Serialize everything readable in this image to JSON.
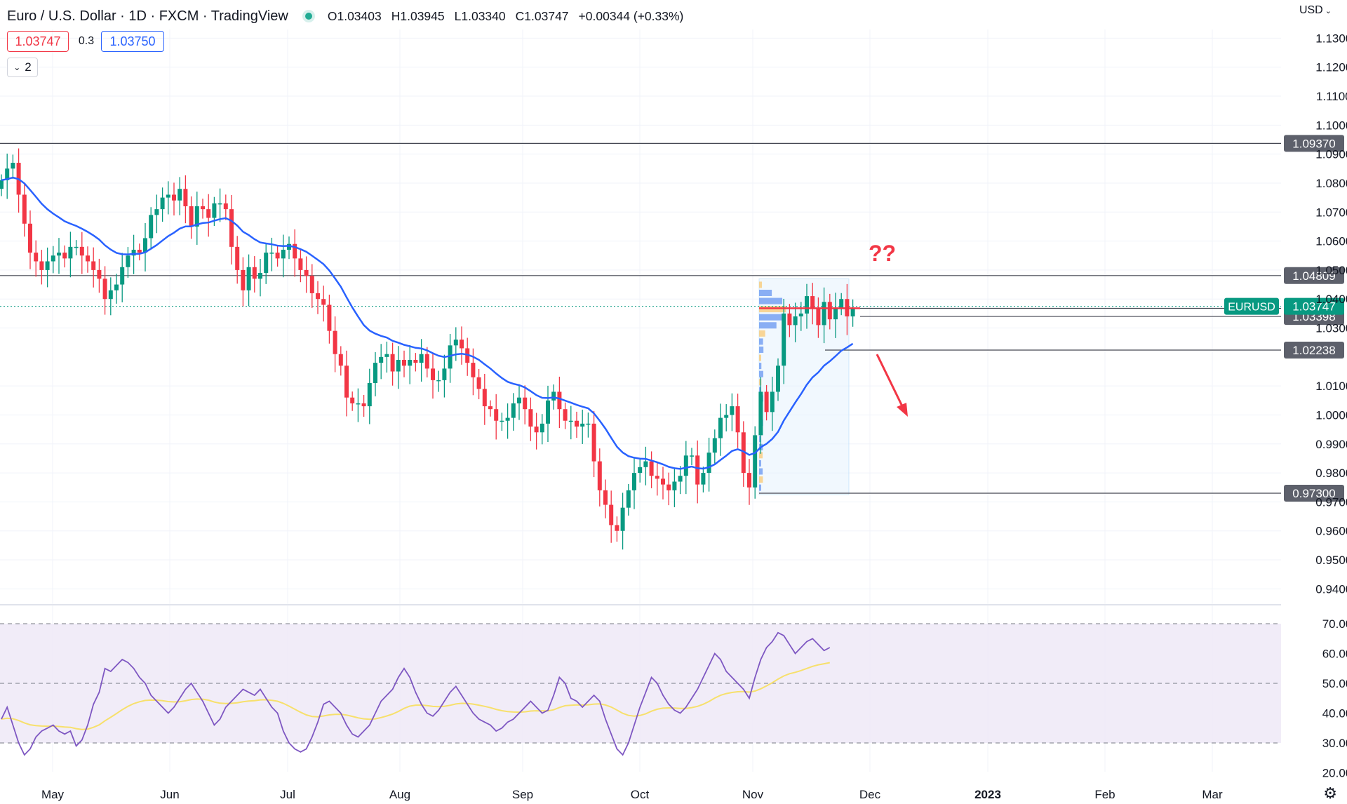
{
  "header": {
    "title": "Euro / U.S. Dollar · 1D · FXCM · TradingView",
    "open": "O1.03403",
    "high": "H1.03945",
    "low": "L1.03340",
    "close": "C1.03747",
    "change": "+0.00344 (+0.33%)"
  },
  "trade": {
    "sell_price": "1.03747",
    "spread": "0.3",
    "buy_price": "1.03750"
  },
  "indicator_toggle": {
    "label": "2"
  },
  "currency": "USD",
  "annotation": "??",
  "colors": {
    "up": "#089981",
    "down": "#f23645",
    "ema": "#2962ff",
    "rsi": "#7e57c2",
    "rsi_ma": "#f7e06c",
    "rsi_band": "#ede7f6",
    "volume_profile": "#e3f2fd"
  },
  "chart_data": [
    {
      "type": "candlestick",
      "symbol": "EURUSD",
      "ylim": [
        0.935,
        1.133
      ],
      "yticks": [
        "1.13000",
        "1.12000",
        "1.11000",
        "1.10000",
        "1.09000",
        "1.08000",
        "1.07000",
        "1.06000",
        "1.05000",
        "1.04000",
        "1.03000",
        "1.01000",
        "1.00000",
        "0.99000",
        "0.98000",
        "0.97000",
        "0.96000",
        "0.95000",
        "0.94000"
      ],
      "ytick_values": [
        1.13,
        1.12,
        1.11,
        1.1,
        1.09,
        1.08,
        1.07,
        1.06,
        1.05,
        1.04,
        1.03,
        1.01,
        1.0,
        0.99,
        0.98,
        0.97,
        0.96,
        0.95,
        0.94
      ],
      "xticks": [
        "May",
        "Jun",
        "Jul",
        "Aug",
        "Sep",
        "Oct",
        "Nov",
        "Dec",
        "2023",
        "Feb",
        "Mar"
      ],
      "levels": [
        {
          "value": 1.0937,
          "label": "1.09370"
        },
        {
          "value": 1.04809,
          "label": "1.04809"
        },
        {
          "value": 1.03678,
          "label": "1.03678"
        },
        {
          "value": 1.03398,
          "label": "1.03398"
        },
        {
          "value": 1.02238,
          "label": "1.02238"
        },
        {
          "value": 0.973,
          "label": "0.97300"
        }
      ],
      "last_price": {
        "symbol": "EURUSD",
        "value": 1.03747,
        "label": "1.03747"
      },
      "closes": [
        1.081,
        1.085,
        1.087,
        1.076,
        1.066,
        1.056,
        1.053,
        1.05,
        1.053,
        1.055,
        1.056,
        1.054,
        1.058,
        1.058,
        1.055,
        1.053,
        1.05,
        1.047,
        1.04,
        1.043,
        1.045,
        1.051,
        1.055,
        1.057,
        1.056,
        1.061,
        1.069,
        1.071,
        1.075,
        1.076,
        1.074,
        1.078,
        1.072,
        1.065,
        1.072,
        1.071,
        1.068,
        1.073,
        1.073,
        1.071,
        1.058,
        1.05,
        1.043,
        1.051,
        1.047,
        1.049,
        1.056,
        1.056,
        1.054,
        1.057,
        1.059,
        1.054,
        1.05,
        1.048,
        1.042,
        1.04,
        1.038,
        1.029,
        1.021,
        1.017,
        1.006,
        1.004,
        1.004,
        1.003,
        1.011,
        1.018,
        1.02,
        1.021,
        1.015,
        1.019,
        1.017,
        1.019,
        1.018,
        1.021,
        1.016,
        1.012,
        1.012,
        1.016,
        1.024,
        1.026,
        1.023,
        1.018,
        1.013,
        1.009,
        1.003,
        1.002,
        0.998,
        0.998,
        0.999,
        1.004,
        1.006,
        1.002,
        0.996,
        0.994,
        0.997,
        1.005,
        1.008,
        1.002,
        0.998,
        0.998,
        0.996,
        0.997,
        0.997,
        0.984,
        0.974,
        0.969,
        0.962,
        0.96,
        0.968,
        0.974,
        0.98,
        0.982,
        0.984,
        0.979,
        0.978,
        0.976,
        0.974,
        0.977,
        0.979,
        0.986,
        0.986,
        0.976,
        0.98,
        0.987,
        0.992,
        0.999,
        1.0,
        1.003,
        0.994,
        0.98,
        0.975,
        0.993,
        1.008,
        1.001,
        1.008,
        1.017,
        1.035,
        1.031,
        1.034,
        1.035,
        1.041,
        1.037,
        1.031,
        1.039,
        1.033,
        1.037,
        1.04,
        1.034,
        1.037
      ]
    },
    {
      "type": "line",
      "name": "RSI",
      "ylim": [
        18,
        74
      ],
      "yticks": [
        "70.00",
        "60.00",
        "50.00",
        "40.00",
        "30.00",
        "20.00"
      ],
      "ytick_values": [
        70,
        60,
        50,
        40,
        30,
        20
      ],
      "bands": [
        70,
        50,
        30
      ],
      "series_rsi": [
        38,
        42,
        36,
        30,
        26,
        28,
        32,
        34,
        35,
        36,
        34,
        33,
        34,
        29,
        31,
        36,
        43,
        47,
        55,
        54,
        56,
        58,
        57,
        55,
        52,
        50,
        46,
        44,
        42,
        40,
        42,
        45,
        48,
        50,
        47,
        44,
        40,
        36,
        38,
        42,
        44,
        46,
        48,
        47,
        46,
        48,
        45,
        42,
        40,
        34,
        30,
        28,
        27,
        28,
        32,
        37,
        43,
        44,
        42,
        40,
        36,
        33,
        32,
        34,
        36,
        40,
        44,
        46,
        48,
        52,
        55,
        52,
        47,
        43,
        40,
        39,
        41,
        44,
        47,
        49,
        46,
        43,
        40,
        38,
        37,
        36,
        34,
        35,
        37,
        38,
        40,
        42,
        44,
        42,
        40,
        41,
        46,
        52,
        50,
        45,
        44,
        42,
        44,
        46,
        44,
        38,
        33,
        28,
        26,
        30,
        36,
        42,
        47,
        52,
        50,
        46,
        43,
        41,
        40,
        42,
        45,
        48,
        52,
        56,
        60,
        58,
        54,
        52,
        50,
        48,
        45,
        52,
        58,
        62,
        64,
        67,
        66,
        63,
        60,
        62,
        64,
        65,
        63,
        61,
        62
      ]
    }
  ]
}
